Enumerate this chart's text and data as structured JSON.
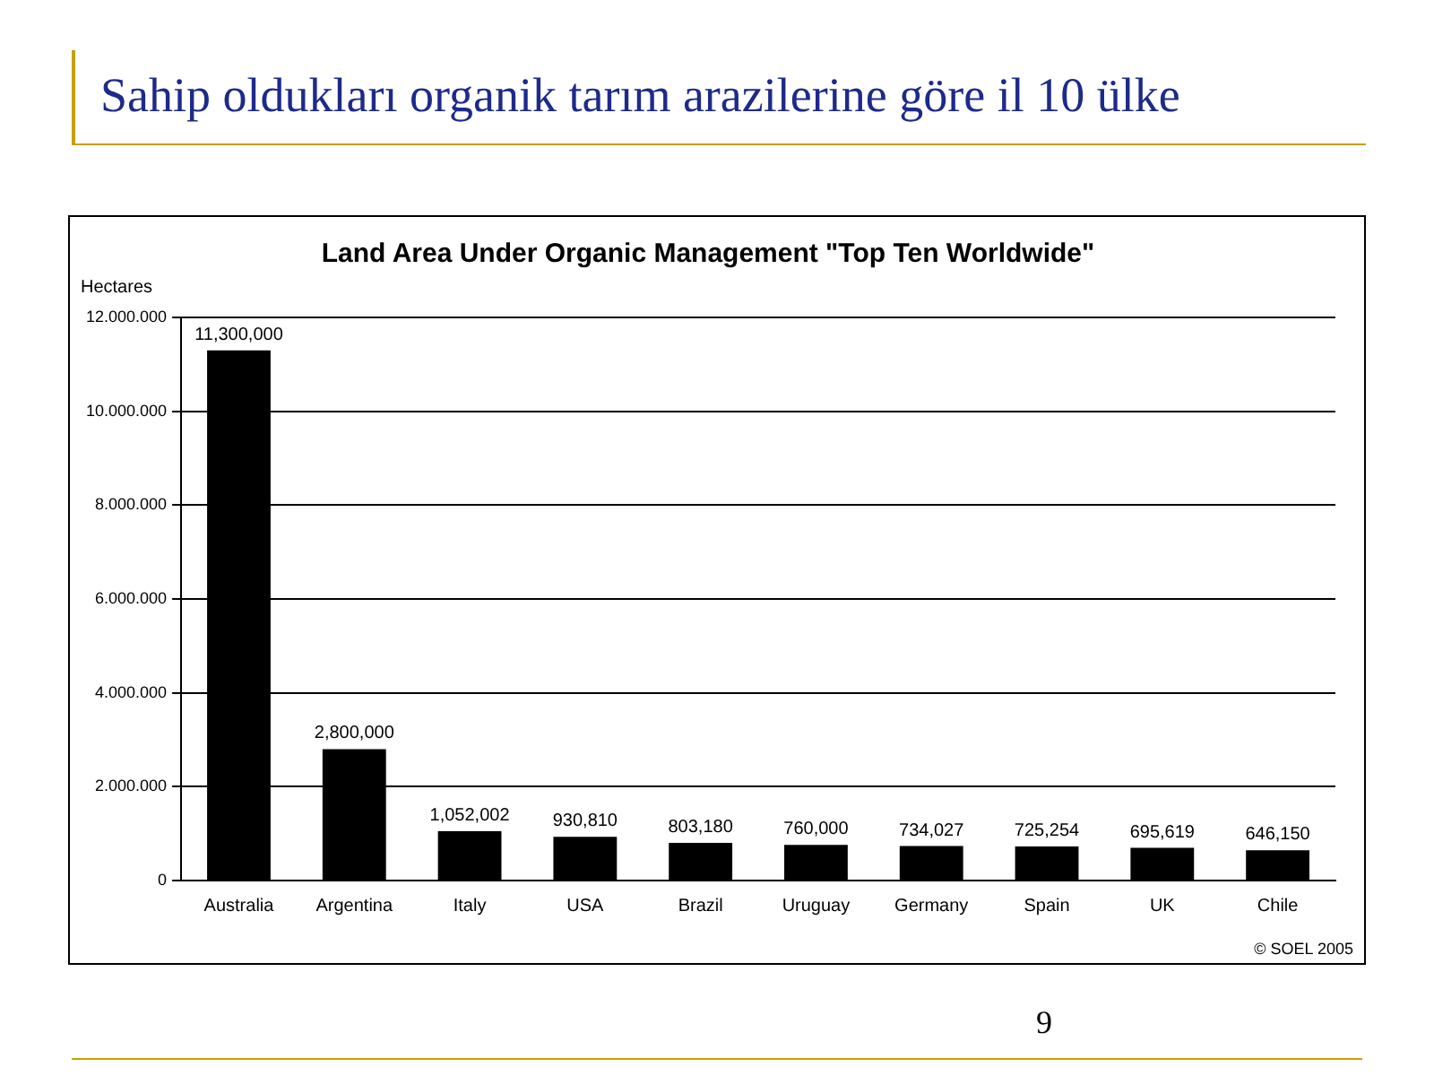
{
  "chart_data": {
    "type": "bar",
    "title": "Land Area Under Organic Management \"Top Ten Worldwide\"",
    "subtitle": "Sahip oldukları organik tarım arazilerine göre il 10 ülke",
    "ylabel": "Hectares",
    "categories": [
      "Australia",
      "Argentina",
      "Italy",
      "USA",
      "Brazil",
      "Uruguay",
      "Germany",
      "Spain",
      "UK",
      "Chile"
    ],
    "values": [
      11300000,
      2800000,
      1052002,
      930810,
      803180,
      760000,
      734027,
      725254,
      695619,
      646150
    ],
    "value_labels": [
      "11,300,000",
      "2,800,000",
      "1,052,002",
      "930,810",
      "803,180",
      "760,000",
      "734,027",
      "725,254",
      "695,619",
      "646,150"
    ],
    "color": "#000000",
    "ylim": [
      0,
      12000000
    ],
    "yticks": [
      0,
      {
        "value": 2000000,
        "label": "2.000.000"
      },
      {
        "value": 4000000,
        "label": "4.000.000"
      },
      {
        "value": 6000000,
        "label": "6.000.000"
      },
      {
        "value": 8000000,
        "label": "8.000.000"
      },
      {
        "value": 10000000,
        "label": "10.000.000"
      },
      {
        "value": 12000000,
        "label": "12.000.000"
      }
    ],
    "grid": "y",
    "legend": false,
    "annotations": [
      "© SOEL 2005",
      "9"
    ]
  }
}
